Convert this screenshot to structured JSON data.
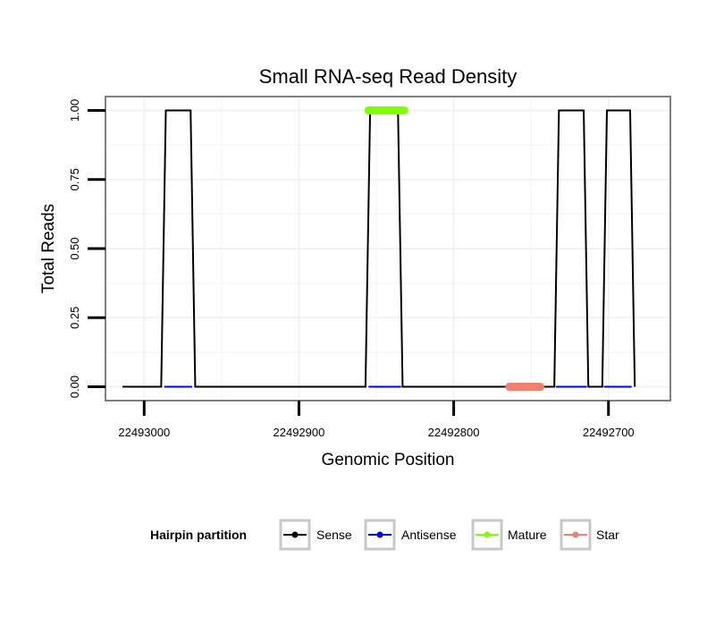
{
  "chart_data": {
    "type": "line",
    "title": "Small RNA-seq Read Density",
    "xlabel": "Genomic Position",
    "ylabel": "Total Reads",
    "x_reversed": true,
    "xlim": [
      22493025,
      22492660
    ],
    "ylim": [
      -0.05,
      1.05
    ],
    "x_ticks": [
      22493000,
      22492900,
      22492800,
      22492700
    ],
    "x_tick_labels": [
      "22493000",
      "22492900",
      "22492800",
      "22492700"
    ],
    "y_ticks": [
      0,
      0.25,
      0.5,
      0.75,
      1
    ],
    "y_tick_labels": [
      "0.00",
      "0.25",
      "0.50",
      "0.75",
      "1.00"
    ],
    "grid": true,
    "legend": {
      "title": "Hairpin partition",
      "position": "bottom",
      "entries": [
        "Sense",
        "Antisense",
        "Mature",
        "Star"
      ]
    },
    "series": [
      {
        "name": "Sense",
        "color": "#000000",
        "x": [
          22493014,
          22492989,
          22492986,
          22492970,
          22492967,
          22492857,
          22492854,
          22492836,
          22492833,
          22492735,
          22492732,
          22492716,
          22492713,
          22492704,
          22492701,
          22492686,
          22492683
        ],
        "y": [
          0,
          0,
          1,
          1,
          0,
          0,
          1,
          1,
          0,
          0,
          1,
          1,
          0,
          0,
          1,
          1,
          0
        ]
      },
      {
        "name": "Antisense",
        "color": "#0000ff",
        "segments": [
          [
            22492987,
            22492969
          ],
          [
            22492855,
            22492834
          ],
          [
            22492734,
            22492714
          ],
          [
            22492703,
            22492685
          ]
        ],
        "y": 0
      },
      {
        "name": "Mature",
        "color": "#7fff00",
        "segments": [
          [
            22492855,
            22492832
          ]
        ],
        "y": 1
      },
      {
        "name": "Star",
        "color": "#f08070",
        "segments": [
          [
            22492764,
            22492744
          ]
        ],
        "y": 0
      }
    ]
  }
}
